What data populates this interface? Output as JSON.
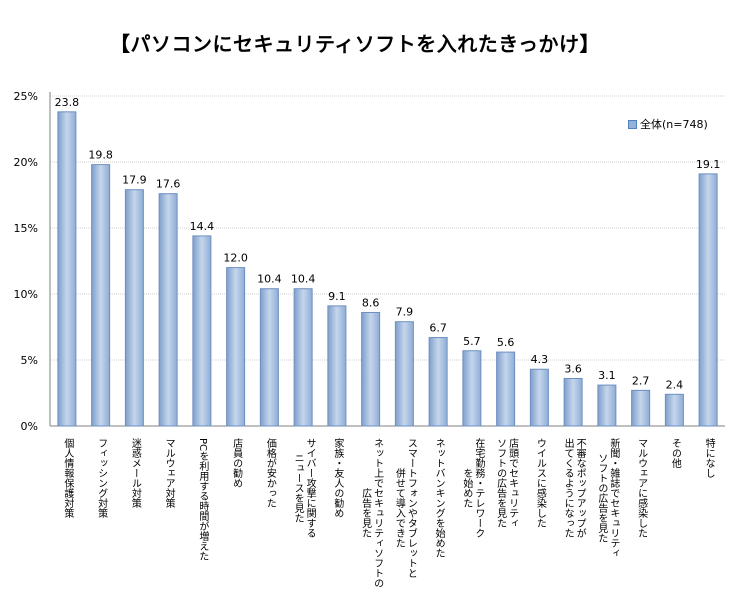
{
  "chart_data": {
    "type": "bar",
    "title": "【パソコンにセキュリティソフトを入れたきっかけ】",
    "xlabel": "",
    "ylabel": "",
    "ylim": [
      0,
      25
    ],
    "yticks": [
      0,
      5,
      10,
      15,
      20,
      25
    ],
    "ytick_labels": [
      "0%",
      "5%",
      "10%",
      "15%",
      "20%",
      "25%"
    ],
    "grid": true,
    "legend_position": "top-right",
    "series": [
      {
        "name": "全体(n=748)",
        "color": "#95b3d7",
        "values": [
          23.8,
          19.8,
          17.9,
          17.6,
          14.4,
          12.0,
          10.4,
          10.4,
          9.1,
          8.6,
          7.9,
          6.7,
          5.7,
          5.6,
          4.3,
          3.6,
          3.1,
          2.7,
          2.4,
          19.1
        ],
        "value_labels": [
          "23.8",
          "19.8",
          "17.9",
          "17.6",
          "14.4",
          "12.0",
          "10.4",
          "10.4",
          "9.1",
          "8.6",
          "7.9",
          "6.7",
          "5.7",
          "5.6",
          "4.3",
          "3.6",
          "3.1",
          "2.7",
          "2.4",
          "19.1"
        ]
      }
    ],
    "categories": [
      "個人情報保護対策",
      "フィッシング対策",
      "迷惑メール対策",
      "マルウェア対策",
      "PCを利用する時間が増えた",
      "店員の勧め",
      "価格が安かった",
      "サイバー攻撃に関する\nニュースを見た",
      "家族・友人の勧め",
      "ネット上でセキュリティソフトの\n広告を見た",
      "スマートフォンやタブレットと\n併せて導入できた",
      "ネットバンキングを始めた",
      "在宅勤務・テレワーク\nを始めた",
      "店頭でセキュリティ\nソフトの広告を見た",
      "ウイルスに感染した",
      "不審なポップアップが\n出てくるようになった",
      "新聞・雑誌でセキュリティ\nソフトの広告を見た",
      "マルウェアに感染した",
      "その他",
      "特になし"
    ]
  }
}
